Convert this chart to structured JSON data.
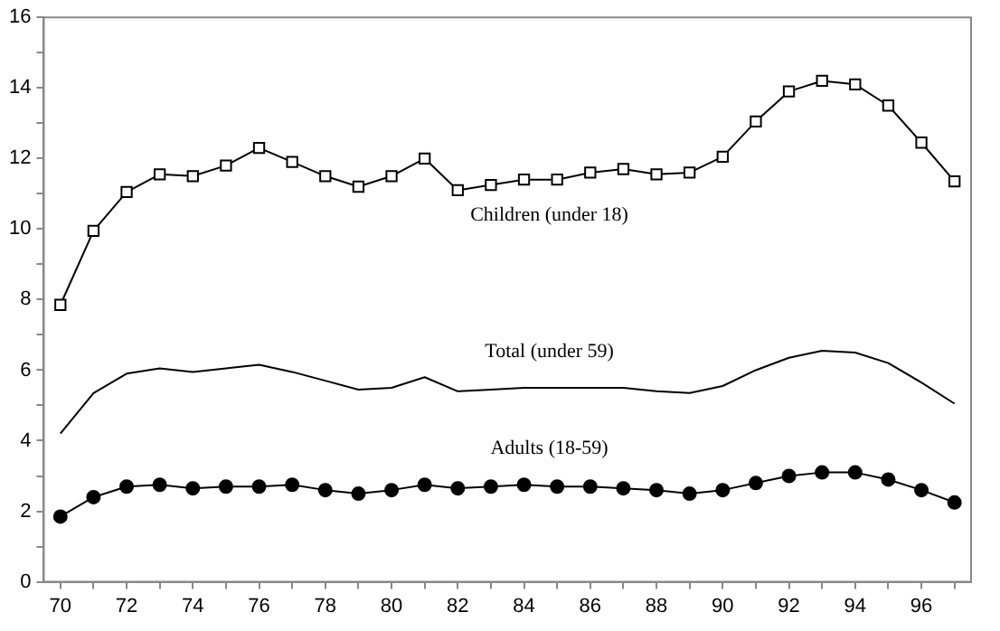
{
  "chart_data": {
    "type": "line",
    "x": [
      70,
      71,
      72,
      73,
      74,
      75,
      76,
      77,
      78,
      79,
      80,
      81,
      82,
      83,
      84,
      85,
      86,
      87,
      88,
      89,
      90,
      91,
      92,
      93,
      94,
      95,
      96,
      97
    ],
    "series": [
      {
        "name": "Children (under 18)",
        "color": "#000000",
        "marker": "square",
        "values": [
          7.85,
          9.95,
          11.05,
          11.55,
          11.5,
          11.8,
          12.3,
          11.9,
          11.5,
          11.2,
          11.5,
          12.0,
          11.1,
          11.25,
          11.4,
          11.4,
          11.6,
          11.7,
          11.55,
          11.6,
          12.05,
          13.05,
          13.9,
          14.2,
          14.1,
          13.5,
          12.45,
          11.35
        ]
      },
      {
        "name": "Total (under 59)",
        "color": "#000000",
        "marker": "none",
        "values": [
          4.2,
          5.35,
          5.9,
          6.05,
          5.95,
          6.05,
          6.15,
          5.95,
          5.7,
          5.45,
          5.5,
          5.8,
          5.4,
          5.45,
          5.5,
          5.5,
          5.5,
          5.5,
          5.4,
          5.35,
          5.55,
          6.0,
          6.35,
          6.55,
          6.5,
          6.2,
          5.65,
          5.05
        ]
      },
      {
        "name": "Adults (18-59)",
        "color": "#000000",
        "marker": "circle",
        "values": [
          1.85,
          2.4,
          2.7,
          2.75,
          2.65,
          2.7,
          2.7,
          2.75,
          2.6,
          2.5,
          2.6,
          2.75,
          2.65,
          2.7,
          2.75,
          2.7,
          2.7,
          2.65,
          2.6,
          2.5,
          2.6,
          2.8,
          3.0,
          3.1,
          3.1,
          2.9,
          2.6,
          2.25
        ]
      }
    ],
    "xlim": [
      69.5,
      97.5
    ],
    "xticks": [
      70,
      {
        "value": 71,
        "label": null
      },
      72,
      {
        "value": 73,
        "label": null
      },
      74,
      {
        "value": 75,
        "label": null
      },
      76,
      {
        "value": 77,
        "label": null
      },
      78,
      {
        "value": 79,
        "label": null
      },
      80,
      {
        "value": 81,
        "label": null
      },
      82,
      {
        "value": 83,
        "label": null
      },
      84,
      {
        "value": 85,
        "label": null
      },
      86,
      {
        "value": 87,
        "label": null
      },
      88,
      {
        "value": 89,
        "label": null
      },
      90,
      {
        "value": 91,
        "label": null
      },
      92,
      {
        "value": 93,
        "label": null
      },
      94,
      {
        "value": 95,
        "label": null
      },
      96,
      {
        "value": 97,
        "label": null
      }
    ],
    "ylim": [
      0,
      16
    ],
    "yticks": [
      0,
      {
        "value": 1,
        "label": null
      },
      2,
      {
        "value": 3,
        "label": null
      },
      4,
      {
        "value": 5,
        "label": null
      },
      6,
      {
        "value": 7,
        "label": null
      },
      8,
      {
        "value": 9,
        "label": null
      },
      10,
      {
        "value": 11,
        "label": null
      },
      12,
      {
        "value": 13,
        "label": null
      },
      14,
      {
        "value": 15,
        "label": null
      },
      16
    ],
    "grid": false,
    "legend": false
  }
}
